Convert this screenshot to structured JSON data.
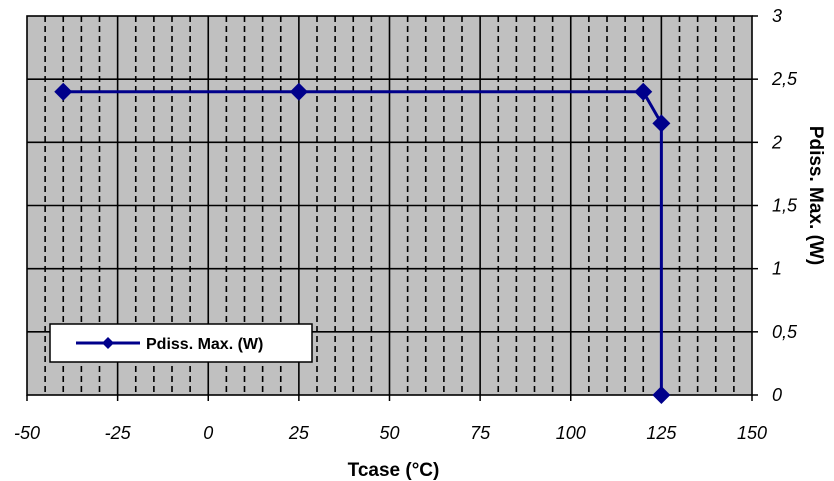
{
  "chart_data": {
    "type": "line",
    "xlabel": "Tcase (°C)",
    "ylabel": "Pdiss. Max. (W)",
    "xlim": [
      -50,
      150
    ],
    "ylim": [
      0,
      3
    ],
    "x_ticks": [
      -50,
      -25,
      0,
      25,
      50,
      75,
      100,
      125,
      150
    ],
    "y_ticks": [
      0,
      0.5,
      1,
      1.5,
      2,
      2.5,
      3
    ],
    "x_tick_labels": [
      "-50",
      "-25",
      "0",
      "25",
      "50",
      "75",
      "100",
      "125",
      "150"
    ],
    "y_tick_labels": [
      "0",
      "0,5",
      "1",
      "1,5",
      "2",
      "2,5",
      "3"
    ],
    "grid": true,
    "minor_x_step": 5,
    "y_axis_side": "right",
    "legend_placement": "bottom-left",
    "series": [
      {
        "name": "Pdiss. Max. (W)",
        "x": [
          -40,
          25,
          120,
          125,
          125
        ],
        "y": [
          2.4,
          2.4,
          2.4,
          2.15,
          0
        ],
        "color": "#00008b",
        "marker": "diamond"
      }
    ]
  },
  "colors": {
    "plot_background": "#c0c0c0",
    "major_grid": "#000000",
    "minor_grid": "#000000",
    "series": "#00008b"
  }
}
